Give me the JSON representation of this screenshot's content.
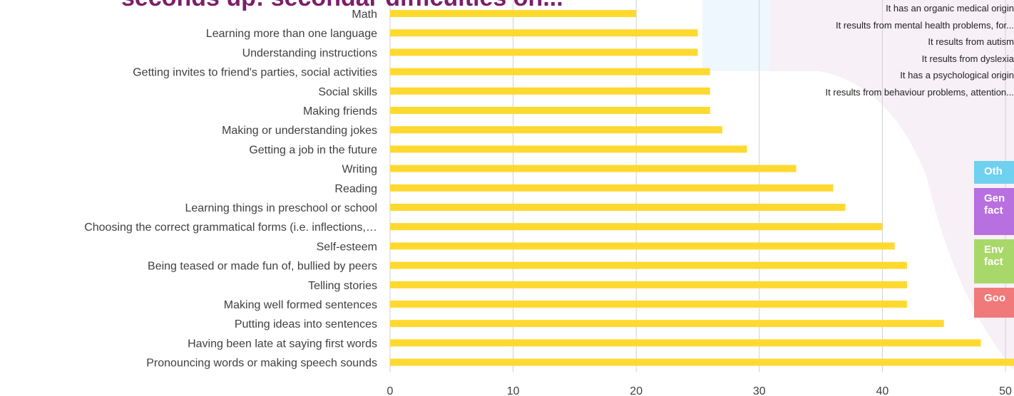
{
  "page": {
    "title_partial": "seconds up: secondar difficulties on...",
    "overlay_reasons": [
      "It has an organic medical origin",
      "It results from mental health problems, for...",
      "It results from autism",
      "It results from dyslexia",
      "It  has a psychological origin",
      "It results from behaviour problems, attention..."
    ],
    "legend_boxes": [
      {
        "label": "Oth",
        "color": "#6fd0f0"
      },
      {
        "label": "Gen fact",
        "color": "#b86fe0"
      },
      {
        "label": "Env fact",
        "color": "#a9d86a"
      },
      {
        "label": "Goo",
        "color": "#f07a7a"
      }
    ]
  },
  "chart_data": {
    "type": "bar",
    "orientation": "horizontal",
    "categories": [
      "Math",
      "Learning more than one language",
      "Understanding instructions",
      "Getting invites to friend's parties, social activities",
      "Social skills",
      "Making friends",
      "Making or understanding jokes",
      "Getting a job in the future",
      "Writing",
      "Reading",
      "Learning things in preschool or school",
      "Choosing the correct grammatical forms (i.e. inflections,…",
      "Self-esteem",
      "Being teased or made fun of, bullied by peers",
      "Telling stories",
      "Making well formed sentences",
      "Putting  ideas into sentences",
      "Having been late at saying first words",
      "Pronouncing words or making speech sounds"
    ],
    "values": [
      20,
      25,
      25,
      26,
      26,
      26,
      27,
      29,
      33,
      36,
      37,
      40,
      41,
      42,
      42,
      42,
      45,
      48,
      51
    ],
    "xlim": [
      0,
      50
    ],
    "xticks": [
      0,
      10,
      20,
      30,
      40,
      50
    ],
    "grid": true,
    "bar_color": "#ffd92f",
    "grid_color": "#d0d0d0"
  }
}
